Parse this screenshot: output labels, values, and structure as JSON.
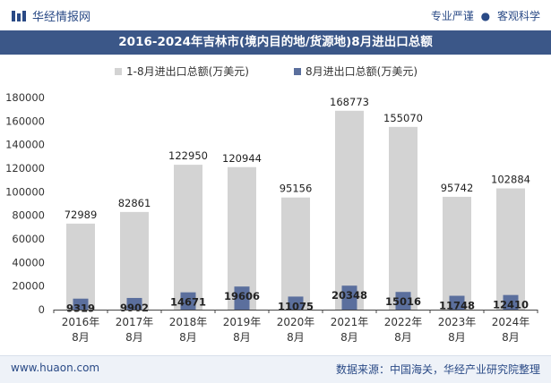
{
  "header": {
    "brand": "华经情报网",
    "tagline_left": "专业严谨",
    "tagline_sep": "●",
    "tagline_right": "客观科学"
  },
  "footer": {
    "site": "www.huaon.com",
    "source": "数据来源：中国海关，华经产业研究院整理"
  },
  "colors": {
    "series1": "#d3d3d3",
    "series2": "#5b6f9d",
    "title_bg": "#3b5788",
    "header_text": "#2a4a86"
  },
  "chart_data": {
    "type": "bar",
    "title": "2016-2024年吉林市(境内目的地/货源地)8月进出口总额",
    "categories": [
      [
        "2016年",
        "8月"
      ],
      [
        "2017年",
        "8月"
      ],
      [
        "2018年",
        "8月"
      ],
      [
        "2019年",
        "8月"
      ],
      [
        "2020年",
        "8月"
      ],
      [
        "2021年",
        "8月"
      ],
      [
        "2022年",
        "8月"
      ],
      [
        "2023年",
        "8月"
      ],
      [
        "2024年",
        "8月"
      ]
    ],
    "series": [
      {
        "name": "1-8月进出口总额(万美元)",
        "values": [
          72989,
          82861,
          122950,
          120944,
          95156,
          168773,
          155070,
          95742,
          102884
        ]
      },
      {
        "name": "8月进出口总额(万美元)",
        "values": [
          9319,
          9902,
          14671,
          19606,
          11075,
          20348,
          15016,
          11748,
          12410
        ]
      }
    ],
    "ylim": [
      0,
      180000
    ],
    "yticks": [
      0,
      20000,
      40000,
      60000,
      80000,
      100000,
      120000,
      140000,
      160000,
      180000
    ],
    "legend_position": "top-center",
    "grid": false
  }
}
